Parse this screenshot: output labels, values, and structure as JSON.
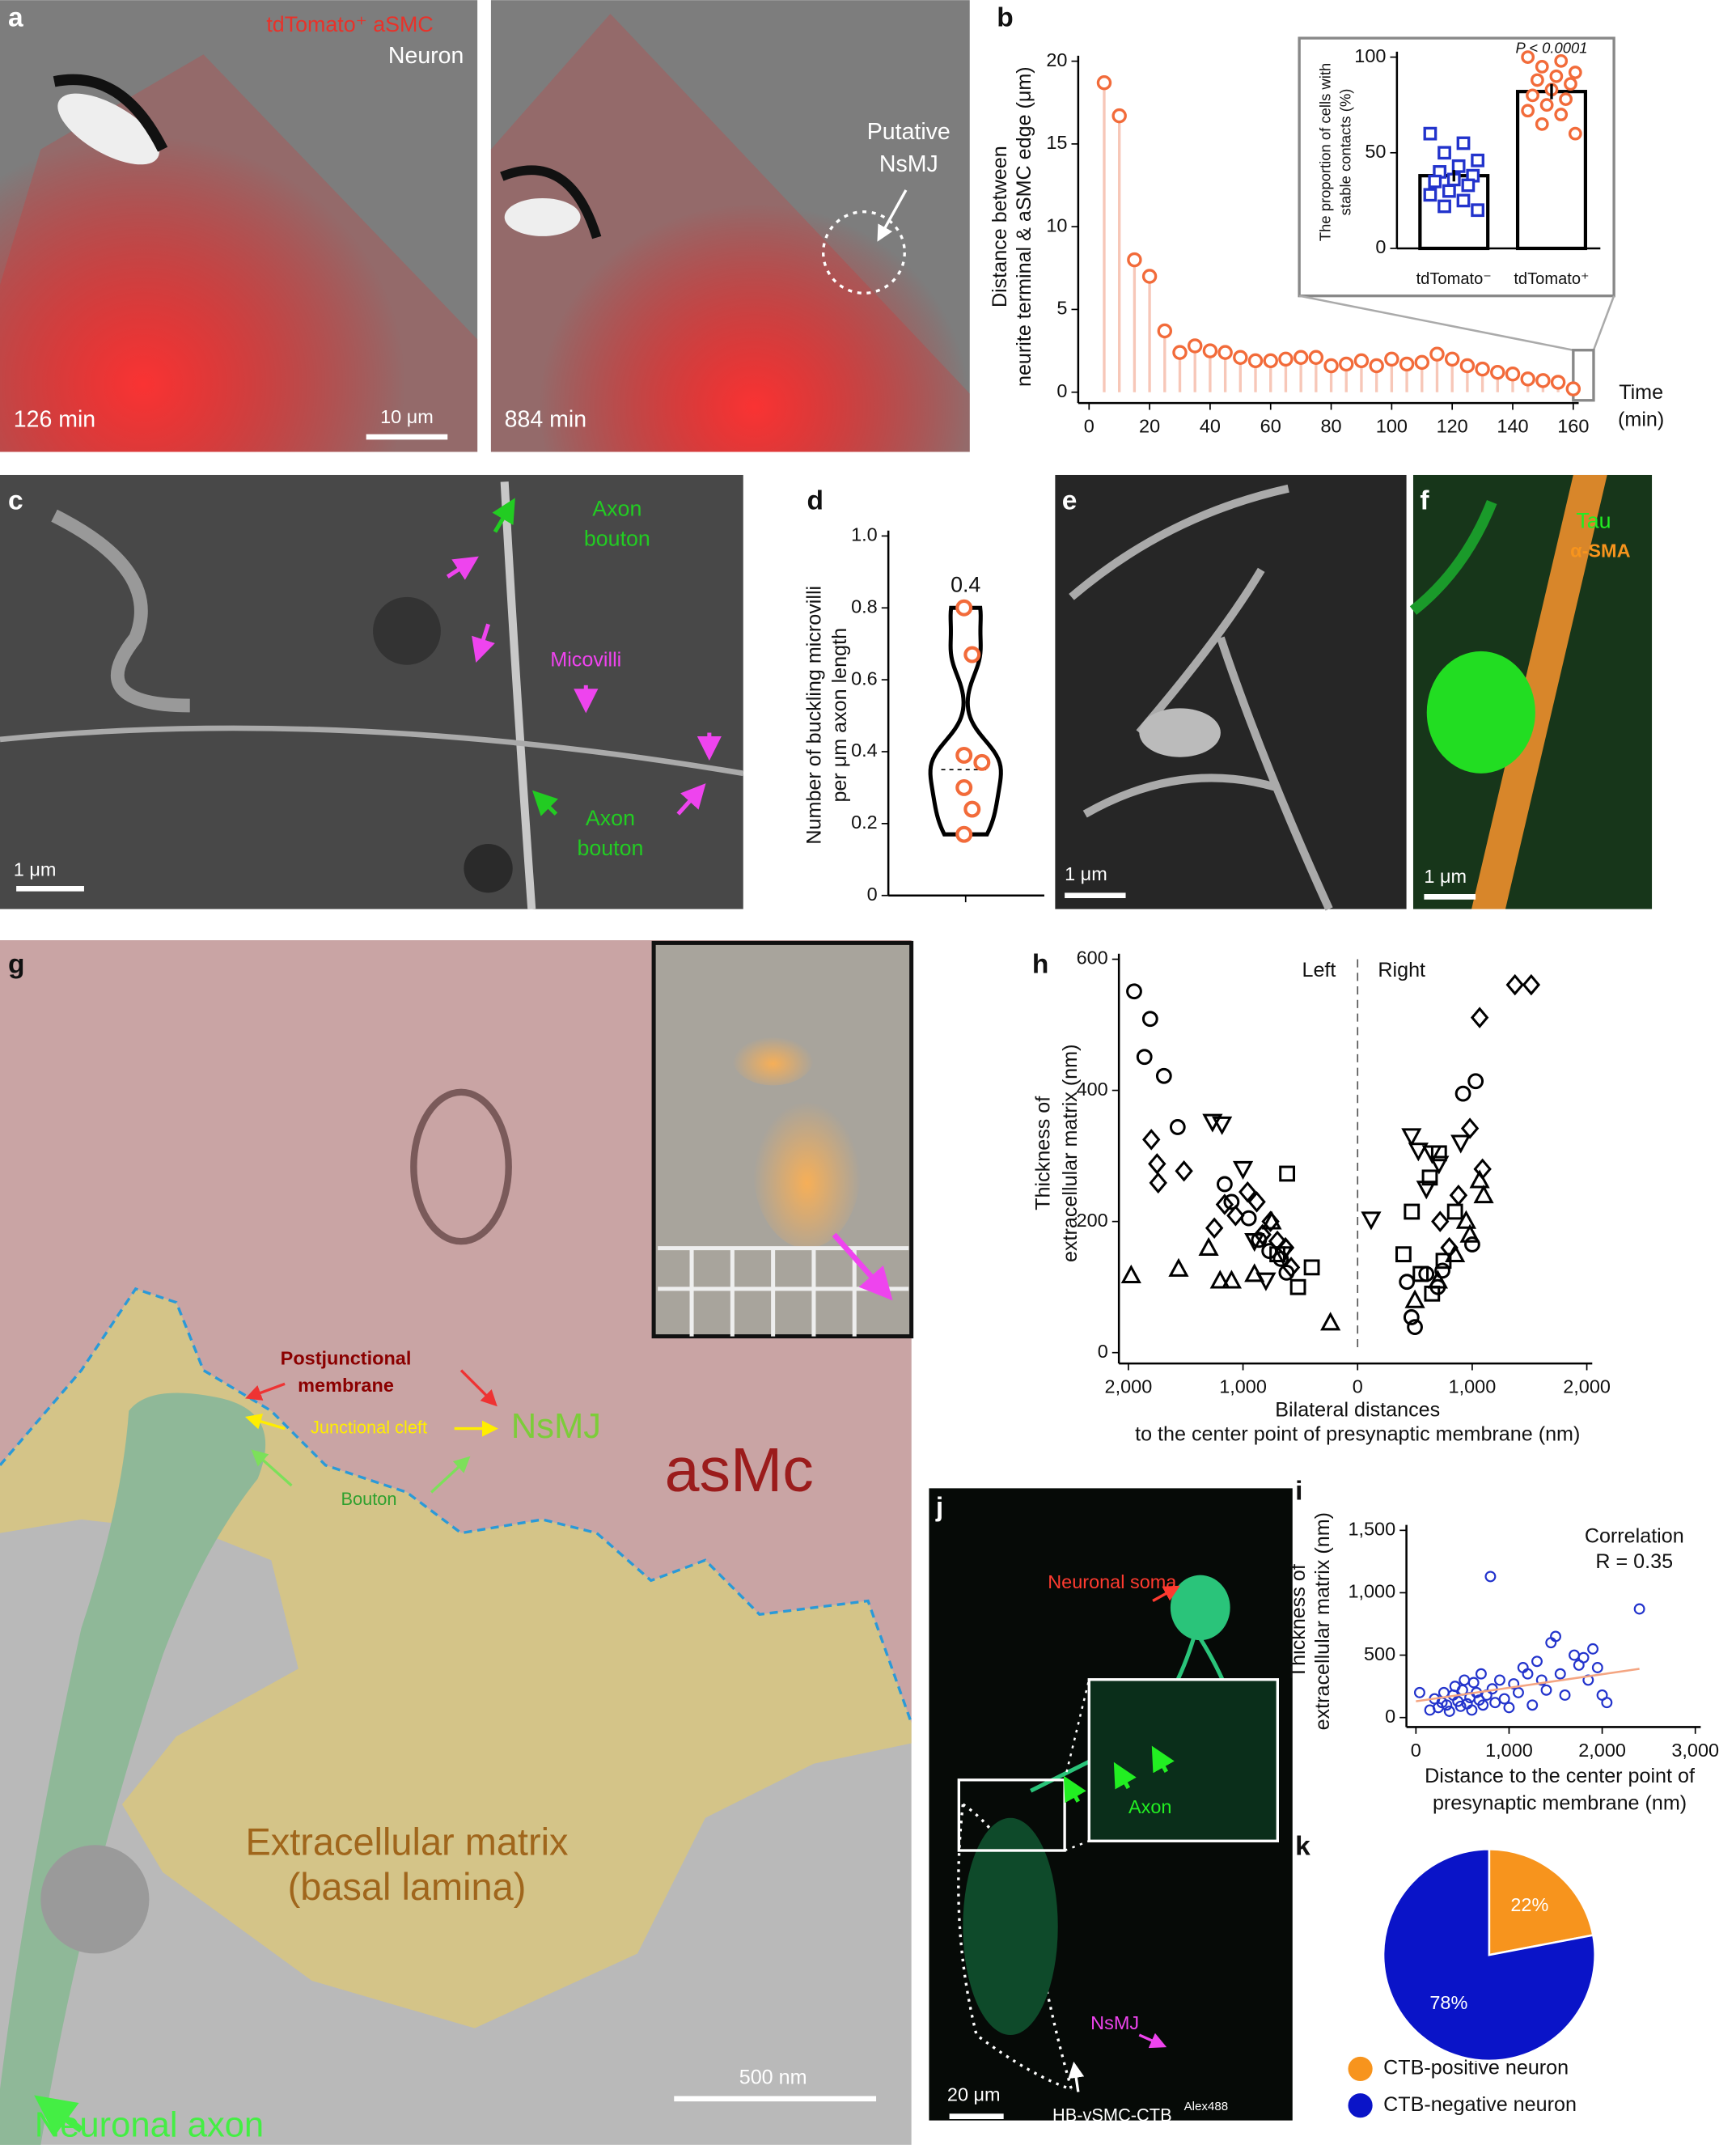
{
  "panel_labels": [
    "a",
    "b",
    "c",
    "d",
    "e",
    "f",
    "g",
    "h",
    "i",
    "j",
    "k"
  ],
  "panels": {
    "a1": [
      "tdTomato⁺ aSMC",
      "Neuron",
      "126 min",
      "10 μm"
    ],
    "a2": [
      "884 min",
      "Putative",
      "NsMJ"
    ],
    "c": [
      "Axon",
      "bouton",
      "Micovilli",
      "Axon",
      "bouton",
      "1 μm"
    ],
    "e": [
      "1 μm"
    ],
    "f": [
      "Tau",
      "α-SMA",
      "1 μm"
    ],
    "g": [
      "Postjunctional",
      "membrane",
      "Junctional cleft",
      "NsMJ",
      "Bouton",
      "asMc",
      "Extracellular matrix",
      "(basal lamina)",
      "Neuronal axon",
      "500 nm"
    ],
    "j": [
      "Neuronal soma",
      "Axon",
      "NsMJ",
      "20 μm",
      "HB-vSMC-CTB",
      "Alex488"
    ]
  },
  "chart_data": [
    {
      "type": "stem",
      "x": [
        5,
        10,
        15,
        20,
        25,
        30,
        35,
        40,
        45,
        50,
        55,
        60,
        65,
        70,
        75,
        80,
        85,
        90,
        95,
        100,
        105,
        110,
        115,
        120,
        125,
        130,
        135,
        140,
        145,
        150,
        155,
        160
      ],
      "values": [
        18.7,
        16.7,
        8.0,
        7.0,
        3.7,
        2.4,
        2.8,
        2.5,
        2.4,
        2.1,
        1.9,
        1.9,
        2.0,
        2.1,
        2.1,
        1.6,
        1.7,
        1.9,
        1.6,
        2.0,
        1.7,
        1.8,
        2.3,
        2.0,
        1.6,
        1.4,
        1.2,
        1.1,
        0.8,
        0.7,
        0.6,
        0.2
      ],
      "color": "#f26b3a",
      "stem_color": "#f7c7b8",
      "xlim": [
        0,
        160
      ],
      "xticks": [
        0,
        20,
        40,
        60,
        80,
        100,
        120,
        140,
        160
      ],
      "ylim": [
        0,
        20
      ],
      "yticks": [
        0,
        5,
        10,
        15,
        20
      ],
      "ylabel": [
        "Distance between",
        "neurite terminal & aSMC edge (μm)"
      ],
      "xlabel": [
        "Time",
        "(min)"
      ]
    },
    {
      "type": "bar",
      "categories": [
        "tdTomato⁻",
        "tdTomato⁺"
      ],
      "values": [
        38,
        82
      ],
      "errors": [
        3,
        4
      ],
      "colors": [
        "#2233cc",
        "#f26b3a"
      ],
      "points": [
        [
          60,
          55,
          50,
          46,
          43,
          40,
          38,
          36,
          35,
          33,
          30,
          28,
          25,
          22,
          20
        ],
        [
          100,
          98,
          95,
          92,
          90,
          88,
          86,
          83,
          80,
          78,
          75,
          72,
          70,
          65,
          60
        ]
      ],
      "ylim": [
        0,
        100
      ],
      "yticks": [
        0,
        50,
        100
      ],
      "ylabel": [
        "The proportion of cells with",
        "stable contacts (%)"
      ],
      "annotation": "P < 0.0001"
    },
    {
      "type": "violin",
      "values": [
        0.8,
        0.67,
        0.39,
        0.37,
        0.3,
        0.24,
        0.17
      ],
      "median": 0.35,
      "annotation": "0.4",
      "color": "#f26b3a",
      "ylim": [
        0,
        1
      ],
      "yticks": [
        0,
        0.2,
        0.4,
        0.6,
        0.8,
        {
          "value": 1,
          "label": "1.0"
        }
      ],
      "ylabel": [
        "Number of buckling microvilli",
        "per μm axon length"
      ]
    },
    {
      "type": "scatter",
      "xlim": [
        -2000,
        2000
      ],
      "xticks": [
        {
          "value": -2000,
          "label": "2,000"
        },
        {
          "value": -1000,
          "label": "1,000"
        },
        0,
        {
          "value": 1000,
          "label": "1,000"
        },
        {
          "value": 2000,
          "label": "2,000"
        }
      ],
      "ylim": [
        0,
        600
      ],
      "yticks": [
        0,
        200,
        400,
        600
      ],
      "vline": 0,
      "annotations": [
        "Left",
        "Right"
      ],
      "ylabel": [
        "Thickness of",
        "extracellular matrix (nm)"
      ],
      "xlabel": [
        "Bilateral distances",
        "to the center point of presynaptic membrane (nm)"
      ],
      "series": [
        {
          "marker": "circle",
          "color": "#000",
          "x": [
            -1950,
            -1810,
            -1860,
            -1690,
            -1570,
            -1160,
            -1100,
            -950,
            -860,
            -770,
            -670,
            -620,
            430,
            470,
            500,
            920,
            1030,
            1000,
            600,
            700,
            740
          ],
          "values": [
            551,
            509,
            451,
            422,
            344,
            257,
            230,
            205,
            172,
            155,
            143,
            122,
            108,
            54,
            39,
            395,
            414,
            165,
            120,
            100,
            125
          ]
        },
        {
          "marker": "diamond",
          "color": "#000",
          "x": [
            -1800,
            -1750,
            -1740,
            -1515,
            -1250,
            -1160,
            -1065,
            -960,
            -880,
            -830,
            -760,
            -700,
            -630,
            -580,
            1373,
            1515,
            1065,
            980,
            1090,
            720,
            880,
            800
          ],
          "values": [
            325,
            288,
            259,
            277,
            190,
            226,
            209,
            245,
            230,
            180,
            200,
            170,
            160,
            130,
            561,
            561,
            511,
            342,
            280,
            200,
            240,
            160
          ]
        },
        {
          "marker": "triangle-down",
          "color": "#000",
          "x": [
            -1266,
            -1183,
            -1000,
            -900,
            -800,
            -650,
            118,
            470,
            530,
            650,
            710,
            600,
            900
          ],
          "values": [
            352,
            348,
            280,
            170,
            110,
            150,
            203,
            330,
            308,
            304,
            288,
            250,
            320
          ]
        },
        {
          "marker": "square",
          "color": "#000",
          "x": [
            -615,
            -700,
            -520,
            -400,
            473,
            710,
            630,
            850,
            550,
            400,
            750,
            650
          ],
          "values": [
            273,
            150,
            100,
            130,
            215,
            304,
            267,
            215,
            120,
            150,
            140,
            90
          ]
        },
        {
          "marker": "triangle-up",
          "color": "#000",
          "x": [
            -1976,
            -1562,
            -1300,
            -1200,
            -1100,
            -900,
            -237,
            -750,
            947,
            1065,
            1100,
            980,
            850,
            700,
            500
          ],
          "values": [
            118,
            128,
            160,
            110,
            110,
            120,
            46,
            200,
            201,
            263,
            240,
            180,
            150,
            110,
            80
          ]
        }
      ]
    },
    {
      "type": "scatter",
      "xlim": [
        0,
        3000
      ],
      "xticks": [
        0,
        {
          "value": 1000,
          "label": "1,000"
        },
        {
          "value": 2000,
          "label": "2,000"
        },
        {
          "value": 3000,
          "label": "3,000"
        }
      ],
      "ylim": [
        0,
        1500
      ],
      "yticks": [
        0,
        500,
        {
          "value": 1000,
          "label": "1,000"
        },
        {
          "value": 1500,
          "label": "1,500"
        }
      ],
      "annotations": [
        "Correlation",
        "R = 0.35"
      ],
      "ylabel": [
        "Thickness of",
        "extracellular matrix (nm)"
      ],
      "xlabel": [
        "Distance to the center point of",
        "presynaptic membrane (nm)"
      ],
      "series": [
        {
          "marker": "circle",
          "color": "#2233cc",
          "x": [
            40,
            150,
            200,
            240,
            280,
            300,
            330,
            360,
            400,
            420,
            450,
            480,
            500,
            520,
            550,
            580,
            600,
            620,
            650,
            680,
            700,
            720,
            760,
            800,
            820,
            850,
            900,
            950,
            1000,
            1050,
            1100,
            1150,
            1200,
            1250,
            1300,
            1350,
            1400,
            1450,
            1500,
            1550,
            1600,
            1700,
            1750,
            1800,
            1850,
            1900,
            1950,
            2000,
            2050,
            2400
          ],
          "values": [
            200,
            60,
            150,
            80,
            120,
            200,
            100,
            50,
            180,
            250,
            130,
            90,
            220,
            300,
            110,
            160,
            60,
            280,
            200,
            140,
            350,
            100,
            180,
            1130,
            230,
            120,
            300,
            150,
            80,
            270,
            200,
            400,
            350,
            100,
            450,
            300,
            220,
            600,
            650,
            350,
            180,
            500,
            420,
            480,
            300,
            550,
            400,
            180,
            120,
            870
          ]
        }
      ],
      "trend": {
        "x": [
          0,
          2400
        ],
        "values": [
          130,
          390
        ],
        "color": "#f4a582"
      }
    },
    {
      "type": "pie",
      "categories": [
        "CTB-positive neuron",
        "CTB-negative neuron"
      ],
      "values": [
        22,
        78
      ],
      "value_labels": [
        "22%",
        "78%"
      ],
      "colors": [
        "#f7941d",
        "#0a14c8"
      ]
    }
  ]
}
